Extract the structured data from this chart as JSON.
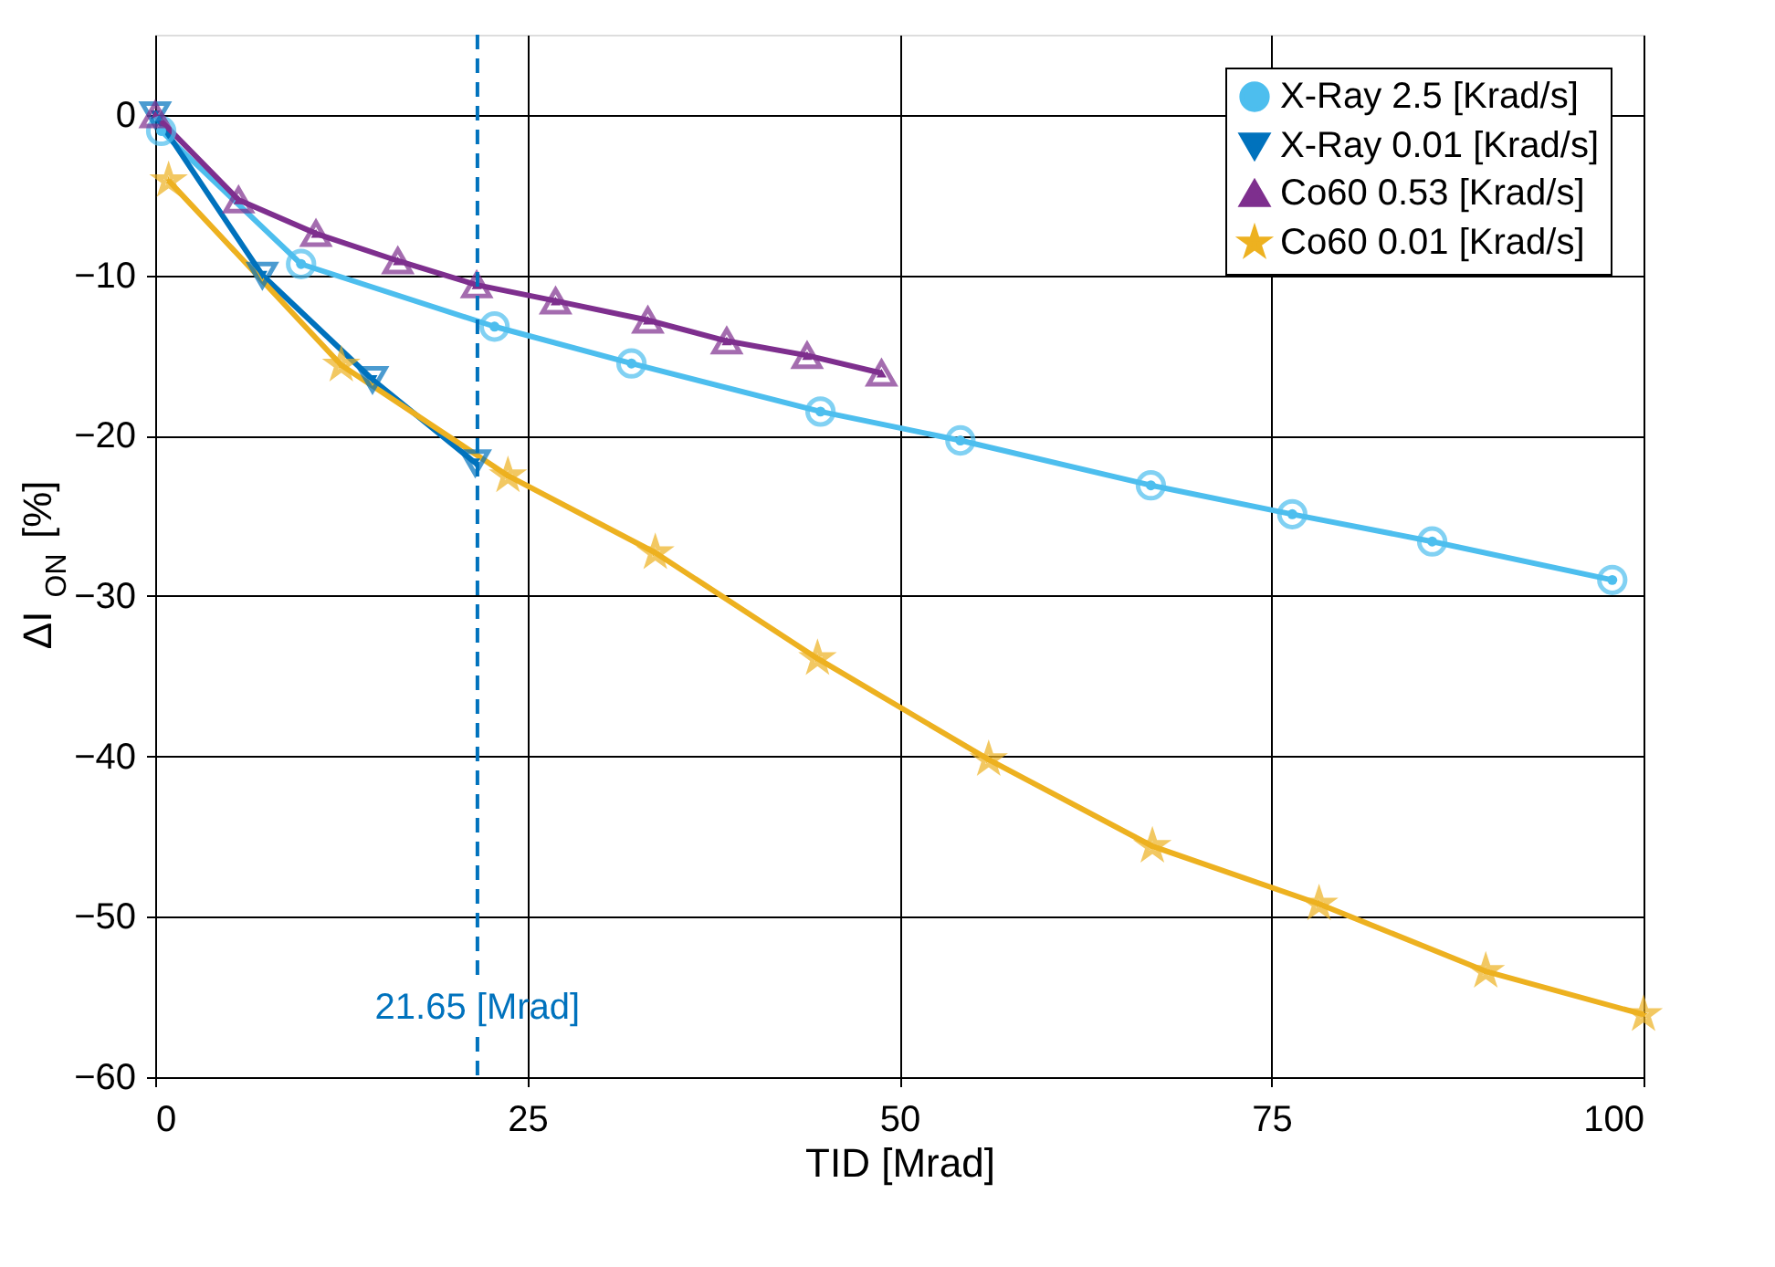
{
  "chart_data": {
    "type": "line",
    "xlabel": "TID [Mrad]",
    "ylabel": "ΔI$_{ON}$ [%]",
    "xlim": [
      0,
      100
    ],
    "xticks": [
      0,
      25,
      50,
      75,
      100
    ],
    "ylim": [
      -60,
      5
    ],
    "yticks": [
      0,
      -10,
      -20,
      -30,
      -40,
      -50,
      -60
    ],
    "grid": true,
    "legend": "top right",
    "line_style": "solid",
    "series": [
      {
        "name": "X-Ray 2.5 [Krad/s]",
        "color": "#4dbeee",
        "marker": "circle",
        "x": [
          0.4,
          9.8,
          22.8,
          32,
          44.7,
          54.1,
          66.9,
          76.4,
          85.8,
          97.9
        ],
        "values": [
          -1,
          -9.3,
          -13.2,
          -15.5,
          -18.5,
          -20.3,
          -23.1,
          -24.9,
          -26.6,
          -29
        ]
      },
      {
        "name": "X-Ray 0.01 [Krad/s]",
        "color": "#0072bd",
        "marker": "triangle-down",
        "x": [
          0,
          7.2,
          14.6,
          21.5
        ],
        "values": [
          0,
          -10,
          -16.5,
          -21.7
        ]
      },
      {
        "name": "Co60 0.53 [Krad/s]",
        "color": "#7e2f8e",
        "marker": "triangle",
        "x": [
          0,
          5.6,
          10.8,
          16.3,
          21.6,
          26.9,
          33.1,
          38.4,
          43.8,
          48.8
        ],
        "values": [
          0,
          -5.3,
          -7.4,
          -9.1,
          -10.6,
          -11.6,
          -12.8,
          -14.1,
          -15,
          -16.1
        ]
      },
      {
        "name": "Co60 0.01 [Krad/s]",
        "color": "#edb120",
        "marker": "star",
        "x": [
          0.9,
          12.5,
          23.7,
          33.6,
          44.5,
          56,
          67,
          78.2,
          89.4,
          100
        ],
        "values": [
          -4.1,
          -15.6,
          -22.5,
          -27.3,
          -33.9,
          -40.2,
          -45.6,
          -49.2,
          -53.4,
          -56.1
        ]
      }
    ],
    "ref_lines": [
      {
        "axis": "x",
        "value": 21.65,
        "label": "21.65 [Mrad]",
        "color": "#0072bd",
        "line_style": "dashed"
      }
    ]
  }
}
